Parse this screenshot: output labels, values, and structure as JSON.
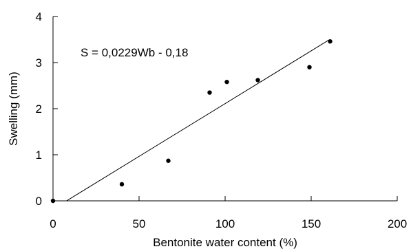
{
  "chart_data": {
    "type": "scatter",
    "title": "",
    "xlabel": "Bentonite water content (%)",
    "ylabel": "Swelling (mm)",
    "xlim": [
      0,
      200
    ],
    "ylim": [
      0,
      4
    ],
    "x_ticks": [
      0,
      50,
      100,
      150,
      200
    ],
    "y_ticks": [
      0,
      1,
      2,
      3,
      4
    ],
    "grid": false,
    "legend": "none",
    "points": [
      {
        "x": 0,
        "y": 0
      },
      {
        "x": 40,
        "y": 0.36
      },
      {
        "x": 67,
        "y": 0.87
      },
      {
        "x": 91,
        "y": 2.35
      },
      {
        "x": 101,
        "y": 2.58
      },
      {
        "x": 119,
        "y": 2.62
      },
      {
        "x": 149,
        "y": 2.9
      },
      {
        "x": 161,
        "y": 3.46
      }
    ],
    "fit": {
      "slope": 0.0229,
      "intercept": -0.18,
      "x_range": [
        8,
        160
      ],
      "equation_label": "S = 0,0229Wb - 0,18"
    }
  }
}
